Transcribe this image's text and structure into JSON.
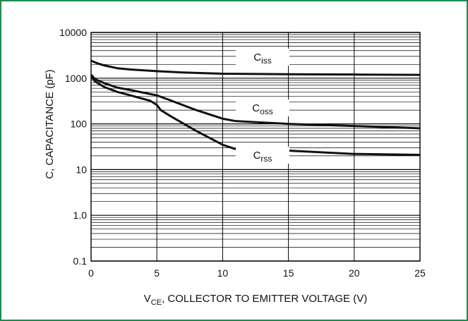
{
  "chart_data": {
    "type": "line",
    "title": "",
    "xlabel": {
      "main": "V",
      "sub": "CE",
      "rest": ", COLLECTOR TO EMITTER VOLTAGE (V)"
    },
    "ylabel": "C, CAPACITANCE (pF)",
    "xlim": [
      0,
      25
    ],
    "ylim": [
      0.1,
      10000
    ],
    "y_scale": "log",
    "grid": true,
    "x_ticks": [
      "0",
      "5",
      "10",
      "15",
      "20",
      "25"
    ],
    "y_ticks": [
      "0.1",
      "1.0",
      "10",
      "100",
      "1000",
      "10000"
    ],
    "series": [
      {
        "name": {
          "main": "C",
          "sub": "iss"
        },
        "points": [
          [
            0,
            2400
          ],
          [
            0.5,
            2100
          ],
          [
            1,
            1900
          ],
          [
            2,
            1650
          ],
          [
            3,
            1550
          ],
          [
            5,
            1420
          ],
          [
            7,
            1330
          ],
          [
            10,
            1250
          ],
          [
            15,
            1220
          ],
          [
            20,
            1200
          ],
          [
            25,
            1180
          ]
        ]
      },
      {
        "name": {
          "main": "C",
          "sub": "oss"
        },
        "points": [
          [
            0,
            1200
          ],
          [
            0.3,
            950
          ],
          [
            1,
            780
          ],
          [
            2,
            620
          ],
          [
            3,
            550
          ],
          [
            5,
            420
          ],
          [
            6,
            330
          ],
          [
            8,
            200
          ],
          [
            10,
            130
          ],
          [
            11,
            115
          ],
          [
            15,
            100
          ],
          [
            20,
            90
          ],
          [
            25,
            80
          ]
        ]
      },
      {
        "name": {
          "main": "C",
          "sub": "rss"
        },
        "points": [
          [
            0,
            1100
          ],
          [
            0.3,
            850
          ],
          [
            1,
            640
          ],
          [
            2,
            500
          ],
          [
            3,
            420
          ],
          [
            4.5,
            320
          ],
          [
            5,
            260
          ],
          [
            5.3,
            200
          ],
          [
            6,
            150
          ],
          [
            8,
            70
          ],
          [
            10,
            35
          ],
          [
            11,
            28
          ],
          [
            15,
            26
          ],
          [
            20,
            22
          ],
          [
            25,
            21
          ]
        ]
      }
    ]
  }
}
